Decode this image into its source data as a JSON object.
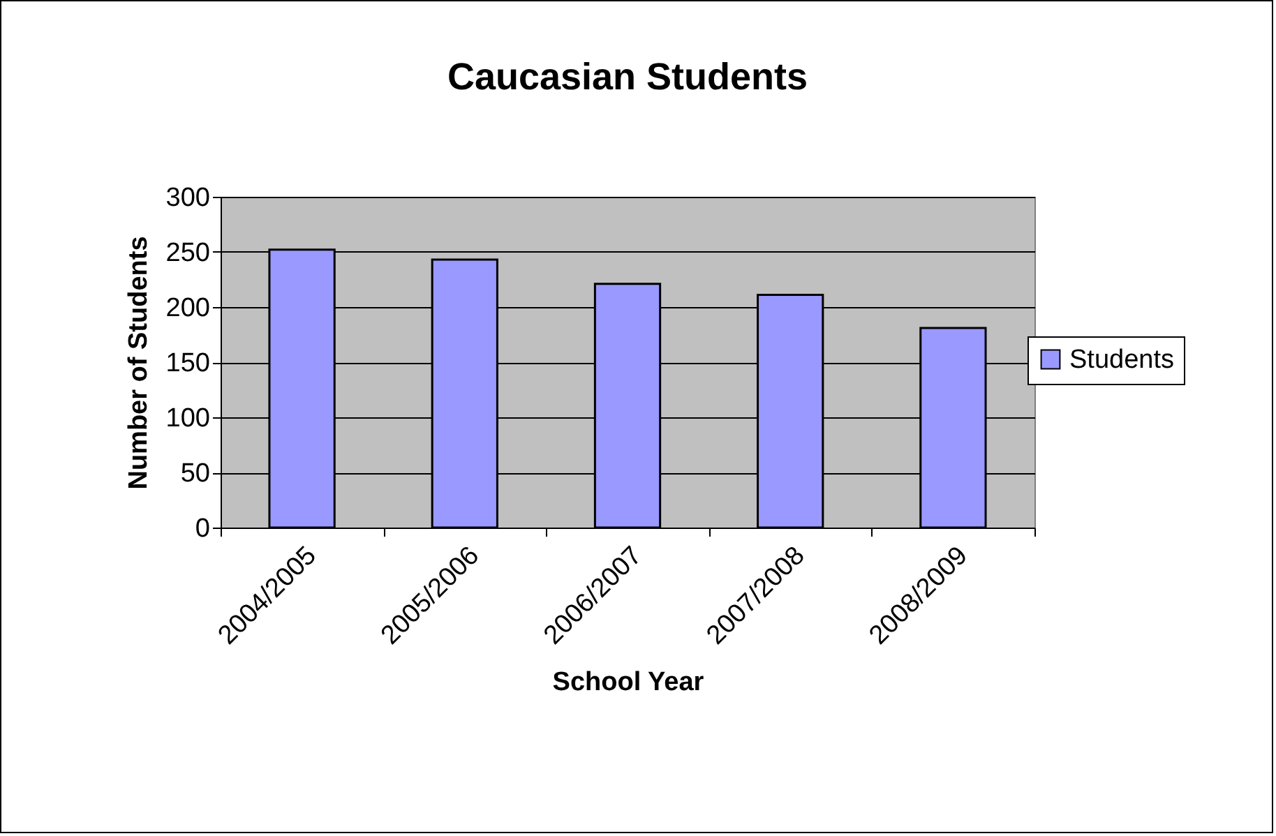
{
  "chart_data": {
    "type": "bar",
    "title": "Caucasian Students",
    "xlabel": "School Year",
    "ylabel": "Number of Students",
    "categories": [
      "2004/2005",
      "2005/2006",
      "2006/2007",
      "2007/2008",
      "2008/2009"
    ],
    "series": [
      {
        "name": "Students",
        "color": "#9999ff",
        "values": [
          252,
          243,
          221,
          211,
          181
        ]
      }
    ],
    "ylim": [
      0,
      300
    ],
    "yticks": [
      0,
      50,
      100,
      150,
      200,
      250,
      300
    ],
    "grid": "y",
    "legend": "right"
  }
}
